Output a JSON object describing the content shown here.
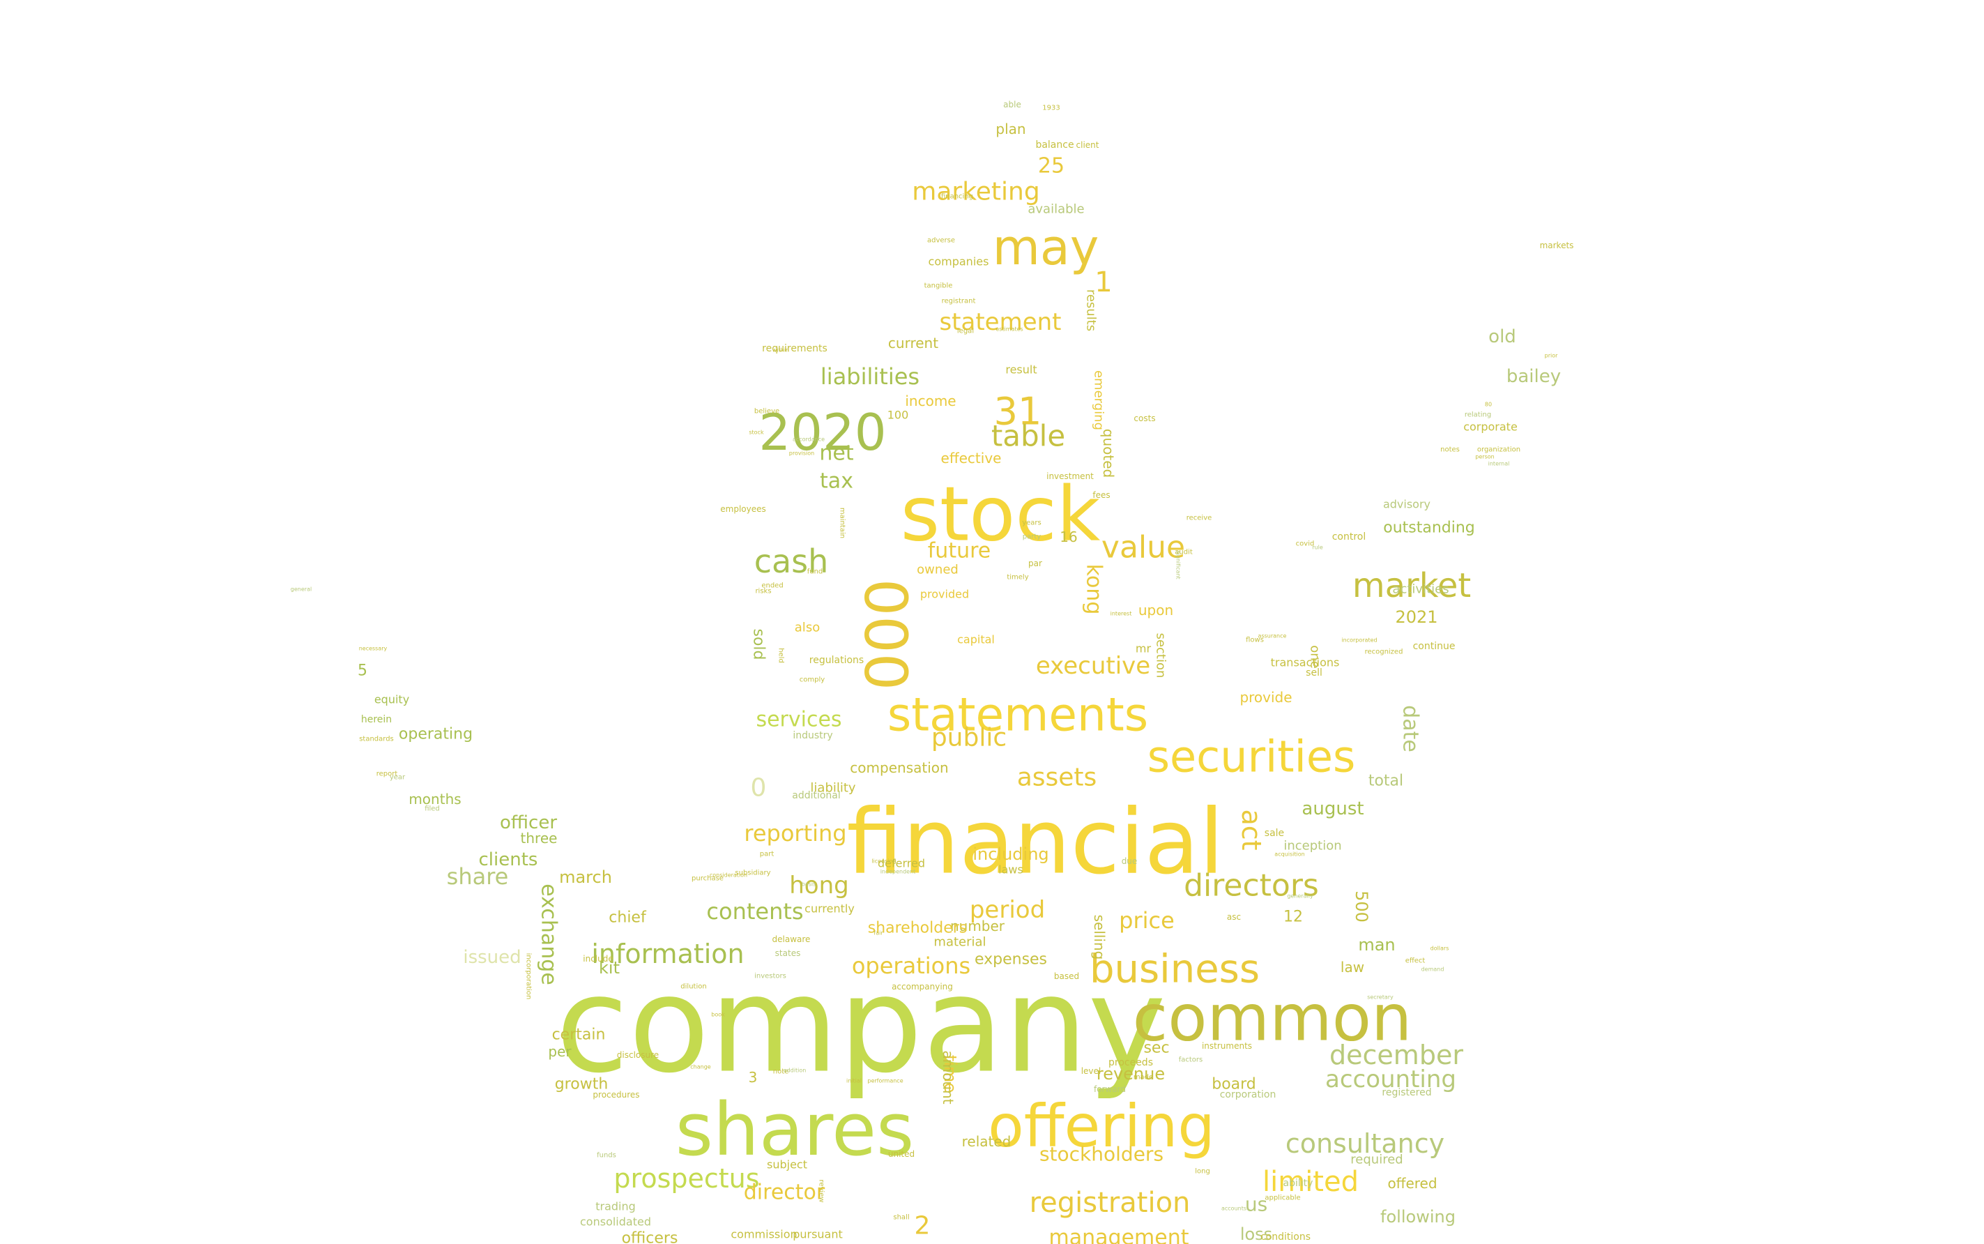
{
  "palette": {
    "background": "#ffffff",
    "bright_yellow": "#f5d63a",
    "gold": "#e9c93b",
    "olive": "#c6c040",
    "lime": "#c4da4f",
    "green": "#a8c050",
    "sage": "#b8c97a",
    "pale": "#dfe4ab"
  },
  "words": [
    {
      "text": "company"
    },
    {
      "text": "financial"
    },
    {
      "text": "stock"
    },
    {
      "text": "shares"
    },
    {
      "text": "offering"
    },
    {
      "text": "common"
    },
    {
      "text": "securities"
    },
    {
      "text": "statements"
    },
    {
      "text": "business"
    },
    {
      "text": "2020"
    },
    {
      "text": "may"
    },
    {
      "text": "000"
    },
    {
      "text": "market"
    },
    {
      "text": "cash"
    },
    {
      "text": "value"
    },
    {
      "text": "31"
    },
    {
      "text": "table"
    },
    {
      "text": "directors"
    },
    {
      "text": "consultancy"
    },
    {
      "text": "limited"
    },
    {
      "text": "december"
    },
    {
      "text": "accounting"
    },
    {
      "text": "registration"
    },
    {
      "text": "prospectus"
    },
    {
      "text": "information"
    },
    {
      "text": "marketing"
    },
    {
      "text": "statement"
    },
    {
      "text": "liabilities"
    },
    {
      "text": "executive"
    },
    {
      "text": "public"
    },
    {
      "text": "assets"
    },
    {
      "text": "hong"
    },
    {
      "text": "contents"
    },
    {
      "text": "period"
    },
    {
      "text": "operations"
    },
    {
      "text": "price"
    },
    {
      "text": "reporting"
    },
    {
      "text": "services"
    },
    {
      "text": "stockholders"
    },
    {
      "text": "management"
    },
    {
      "text": "future"
    },
    {
      "text": "kong"
    },
    {
      "text": "act"
    },
    {
      "text": "date"
    },
    {
      "text": "exchange"
    },
    {
      "text": "net"
    },
    {
      "text": "tax"
    },
    {
      "text": "25"
    },
    {
      "text": "1"
    },
    {
      "text": "2"
    },
    {
      "text": "0"
    },
    {
      "text": "bailey"
    },
    {
      "text": "old"
    },
    {
      "text": "outstanding"
    },
    {
      "text": "2021"
    },
    {
      "text": "august"
    },
    {
      "text": "officer"
    },
    {
      "text": "clients"
    },
    {
      "text": "share"
    },
    {
      "text": "march"
    },
    {
      "text": "director"
    },
    {
      "text": "chief"
    },
    {
      "text": "kit"
    },
    {
      "text": "following"
    },
    {
      "text": "us"
    },
    {
      "text": "loss"
    },
    {
      "text": "board"
    },
    {
      "text": "revenue"
    },
    {
      "text": "offered"
    },
    {
      "text": "sold"
    },
    {
      "text": "time"
    },
    {
      "text": "500"
    },
    {
      "text": "selling"
    },
    {
      "text": "man"
    },
    {
      "text": "including"
    },
    {
      "text": "sec"
    },
    {
      "text": "plan"
    },
    {
      "text": "income"
    },
    {
      "text": "effective"
    },
    {
      "text": "upon"
    },
    {
      "text": "also"
    },
    {
      "text": "provide"
    },
    {
      "text": "total"
    },
    {
      "text": "inception"
    },
    {
      "text": "advisory"
    },
    {
      "text": "activities"
    },
    {
      "text": "control"
    },
    {
      "text": "operating"
    },
    {
      "text": "equity"
    },
    {
      "text": "herein"
    },
    {
      "text": "months"
    },
    {
      "text": "three"
    },
    {
      "text": "issued"
    },
    {
      "text": "certain"
    },
    {
      "text": "per"
    },
    {
      "text": "growth"
    },
    {
      "text": "officers"
    },
    {
      "text": "commission"
    },
    {
      "text": "trading"
    },
    {
      "text": "consolidated"
    },
    {
      "text": "subject"
    },
    {
      "text": "pursuant"
    },
    {
      "text": "required"
    },
    {
      "text": "registered"
    },
    {
      "text": "conditions"
    },
    {
      "text": "ability"
    },
    {
      "text": "related"
    },
    {
      "text": "amount"
    },
    {
      "text": "expenses"
    },
    {
      "text": "material"
    },
    {
      "text": "number"
    },
    {
      "text": "shareholders"
    },
    {
      "text": "currently"
    },
    {
      "text": "deferred"
    },
    {
      "text": "laws"
    },
    {
      "text": "liability"
    },
    {
      "text": "compensation"
    },
    {
      "text": "additional"
    },
    {
      "text": "industry"
    },
    {
      "text": "regulations"
    },
    {
      "text": "owned"
    },
    {
      "text": "provided"
    },
    {
      "text": "capital"
    },
    {
      "text": "section"
    },
    {
      "text": "quoted"
    },
    {
      "text": "emerging"
    },
    {
      "text": "results"
    },
    {
      "text": "current"
    },
    {
      "text": "result"
    },
    {
      "text": "companies"
    },
    {
      "text": "requirements"
    },
    {
      "text": "available"
    },
    {
      "text": "balance"
    },
    {
      "text": "client"
    },
    {
      "text": "able"
    },
    {
      "text": "1933"
    },
    {
      "text": "markets"
    },
    {
      "text": "corporate"
    },
    {
      "text": "continue"
    },
    {
      "text": "transactions"
    },
    {
      "text": "sell"
    },
    {
      "text": "one"
    },
    {
      "text": "law"
    },
    {
      "text": "12"
    },
    {
      "text": "5"
    },
    {
      "text": "3"
    },
    {
      "text": "100"
    },
    {
      "text": "16"
    },
    {
      "text": "mr"
    },
    {
      "text": "due"
    },
    {
      "text": "sale"
    },
    {
      "text": "asc"
    },
    {
      "text": "instruments"
    },
    {
      "text": "proceeds"
    },
    {
      "text": "corporation"
    },
    {
      "text": "united"
    },
    {
      "text": "based"
    },
    {
      "text": "include"
    },
    {
      "text": "incorporation"
    },
    {
      "text": "delaware"
    },
    {
      "text": "states"
    },
    {
      "text": "investors"
    },
    {
      "text": "accompanying"
    },
    {
      "text": "disclosure"
    },
    {
      "text": "note"
    },
    {
      "text": "procedures"
    },
    {
      "text": "funds"
    },
    {
      "text": "standards"
    },
    {
      "text": "report"
    },
    {
      "text": "year"
    },
    {
      "text": "filed"
    },
    {
      "text": "necessary"
    },
    {
      "text": "general"
    },
    {
      "text": "employees"
    },
    {
      "text": "fund"
    },
    {
      "text": "ended"
    },
    {
      "text": "risks"
    },
    {
      "text": "held"
    },
    {
      "text": "comply"
    },
    {
      "text": "investment"
    },
    {
      "text": "fees"
    },
    {
      "text": "receive"
    },
    {
      "text": "costs"
    },
    {
      "text": "interest"
    },
    {
      "text": "audit"
    },
    {
      "text": "significant"
    },
    {
      "text": "organization"
    },
    {
      "text": "internal"
    },
    {
      "text": "person"
    },
    {
      "text": "notes"
    },
    {
      "text": "covid"
    },
    {
      "text": "rule"
    },
    {
      "text": "flows"
    },
    {
      "text": "assurance"
    },
    {
      "text": "relating"
    },
    {
      "text": "80"
    },
    {
      "text": "prior"
    },
    {
      "text": "financing"
    },
    {
      "text": "adverse"
    },
    {
      "text": "registrant"
    },
    {
      "text": "tangible"
    },
    {
      "text": "legal"
    },
    {
      "text": "estimates"
    },
    {
      "text": "within"
    },
    {
      "text": "believe"
    },
    {
      "text": "provision"
    },
    {
      "text": "accordance"
    },
    {
      "text": "stock"
    },
    {
      "text": "maintain"
    },
    {
      "text": "years"
    },
    {
      "text": "party"
    },
    {
      "text": "par"
    },
    {
      "text": "timely"
    },
    {
      "text": "shall"
    },
    {
      "text": "review"
    },
    {
      "text": "level"
    },
    {
      "text": "forward"
    },
    {
      "text": "made"
    },
    {
      "text": "factors"
    },
    {
      "text": "long"
    },
    {
      "text": "applicable"
    },
    {
      "text": "accounts"
    },
    {
      "text": "performance"
    },
    {
      "text": "initial"
    },
    {
      "text": "addition"
    },
    {
      "text": "change"
    },
    {
      "text": "book"
    },
    {
      "text": "dilution"
    },
    {
      "text": "purchase"
    },
    {
      "text": "consideration"
    },
    {
      "text": "subsidiary"
    },
    {
      "text": "part"
    },
    {
      "text": "basis"
    },
    {
      "text": "licensing"
    },
    {
      "text": "independent"
    },
    {
      "text": "fair"
    },
    {
      "text": "effect"
    },
    {
      "text": "demand"
    },
    {
      "text": "dollars"
    },
    {
      "text": "secretary"
    },
    {
      "text": "generally"
    },
    {
      "text": "acquisition"
    },
    {
      "text": "recognized"
    },
    {
      "text": "incorporated"
    },
    {
      "text": "prices"
    },
    {
      "text": "action"
    },
    {
      "text": "risk"
    },
    {
      "text": "exempt"
    },
    {
      "text": "reports"
    },
    {
      "text": "amounts"
    },
    {
      "text": "sheet"
    },
    {
      "text": "rules"
    },
    {
      "text": "paid"
    },
    {
      "text": "deficit"
    },
    {
      "text": "rights"
    },
    {
      "text": "agreement"
    },
    {
      "text": "effectiveness"
    },
    {
      "text": "mentioned"
    },
    {
      "text": "approximately"
    },
    {
      "text": "term"
    },
    {
      "text": "first"
    },
    {
      "text": "policies"
    }
  ]
}
